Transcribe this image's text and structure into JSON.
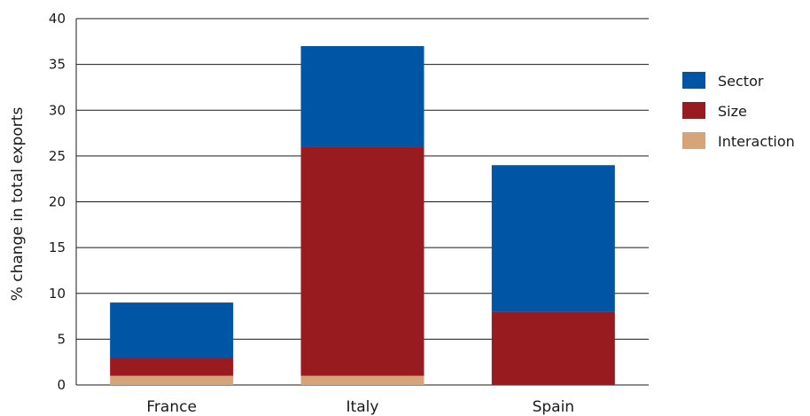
{
  "chart_data": {
    "type": "bar",
    "stacked": true,
    "title": "",
    "xlabel": "",
    "ylabel": "% change in total exports",
    "ylim": [
      0,
      40
    ],
    "yticks": [
      0,
      5,
      10,
      15,
      20,
      25,
      30,
      35,
      40
    ],
    "grid": true,
    "legend_position": "right",
    "categories": [
      "France",
      "Italy",
      "Spain"
    ],
    "series": [
      {
        "name": "Interaction",
        "color": "#d6a479",
        "values": [
          1,
          1,
          0
        ]
      },
      {
        "name": "Size",
        "color": "#971b1f",
        "values": [
          2,
          25,
          8
        ]
      },
      {
        "name": "Sector",
        "color": "#0055a5",
        "values": [
          6,
          11,
          16
        ]
      }
    ],
    "legend_order": [
      "Sector",
      "Size",
      "Interaction"
    ]
  }
}
